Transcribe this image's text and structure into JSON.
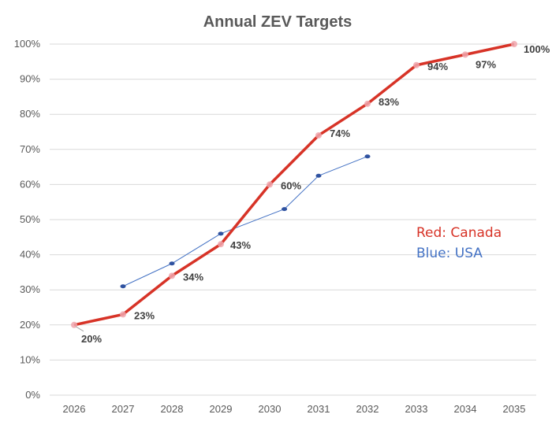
{
  "chart_data": {
    "type": "line",
    "title": "Annual ZEV Targets",
    "x": [
      2026,
      2027,
      2028,
      2029,
      2030,
      2031,
      2032,
      2033,
      2034,
      2035
    ],
    "ylim": [
      0,
      100
    ],
    "yticks": [
      "0%",
      "10%",
      "20%",
      "30%",
      "40%",
      "50%",
      "60%",
      "70%",
      "80%",
      "90%",
      "100%"
    ],
    "grid": true,
    "series": [
      {
        "key": "canada",
        "color": "#d73327",
        "x": [
          2026,
          2027,
          2028,
          2029,
          2030,
          2031,
          2032,
          2033,
          2034,
          2035
        ],
        "values": [
          20,
          23,
          34,
          43,
          60,
          74,
          83,
          94,
          97,
          100
        ],
        "data_labels": [
          "20%",
          "23%",
          "34%",
          "43%",
          "60%",
          "74%",
          "83%",
          "94%",
          "97%",
          "100%"
        ]
      },
      {
        "key": "usa",
        "color": "#4472c4",
        "x": [
          2027,
          2028,
          2029,
          2030.3,
          2031,
          2032
        ],
        "values": [
          31,
          37.5,
          46,
          53,
          62.5,
          68
        ]
      }
    ],
    "annotations": [
      {
        "text": "Red: Canada",
        "color": "#d73327"
      },
      {
        "text": "Blue: USA",
        "color": "#4472c4"
      }
    ]
  }
}
